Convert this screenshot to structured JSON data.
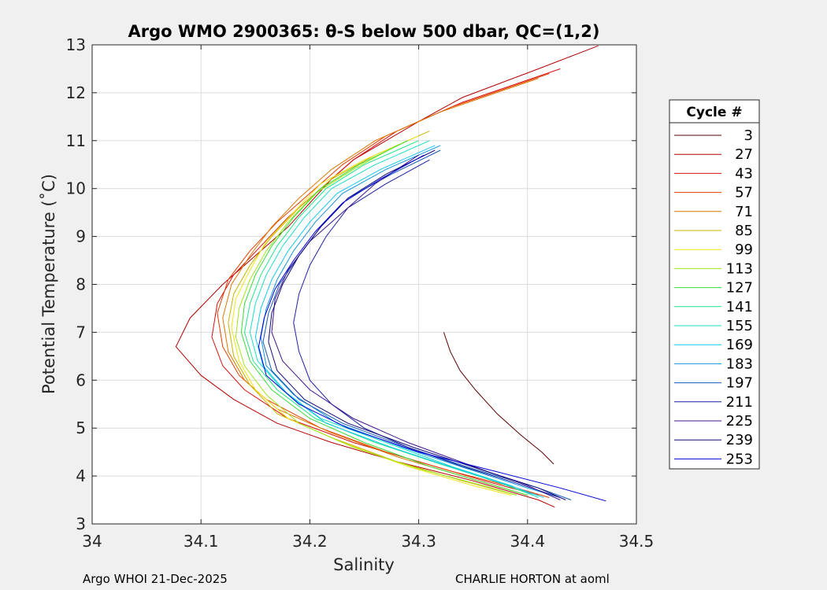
{
  "chart_data": {
    "type": "line",
    "title": "Argo WMO 2900365: θ-S below 500 dbar,  QC=(1,2)",
    "xlabel": "Salinity",
    "ylabel": "Potential Temperature (˚C)",
    "xlim": [
      34,
      34.5
    ],
    "ylim": [
      3,
      13
    ],
    "xticks": [
      "34",
      "34.1",
      "34.2",
      "34.3",
      "34.4",
      "34.5"
    ],
    "yticks": [
      "3",
      "4",
      "5",
      "6",
      "7",
      "8",
      "9",
      "10",
      "11",
      "12",
      "13"
    ],
    "grid": true,
    "legend_title": "Cycle #",
    "legend_position": "right",
    "series": [
      {
        "name": "3",
        "color": "#5a0000",
        "s": [
          34.323,
          34.329,
          34.338,
          34.352,
          34.372,
          34.394,
          34.413,
          34.424
        ],
        "theta": [
          7.0,
          6.6,
          6.2,
          5.8,
          5.3,
          4.85,
          4.5,
          4.25
        ]
      },
      {
        "name": "27",
        "color": "#b40000",
        "s": [
          34.465,
          34.41,
          34.34,
          34.3,
          34.27,
          34.24,
          34.22,
          34.2,
          34.18,
          34.16,
          34.14,
          34.12,
          34.09,
          34.077,
          34.1,
          34.13,
          34.17,
          34.22,
          34.28,
          34.35,
          34.41,
          34.425
        ],
        "theta": [
          12.98,
          12.5,
          11.9,
          11.4,
          11.0,
          10.6,
          10.2,
          9.7,
          9.2,
          8.8,
          8.4,
          8.0,
          7.3,
          6.7,
          6.1,
          5.6,
          5.1,
          4.7,
          4.3,
          3.9,
          3.5,
          3.35
        ]
      },
      {
        "name": "43",
        "color": "#d70f0f",
        "s": [
          34.43,
          34.34,
          34.28,
          34.24,
          34.21,
          34.18,
          34.155,
          34.13,
          34.115,
          34.11,
          34.12,
          34.14,
          34.18,
          34.24,
          34.3,
          34.36,
          34.41
        ],
        "theta": [
          12.5,
          11.8,
          11.2,
          10.6,
          10.0,
          9.4,
          8.8,
          8.2,
          7.6,
          6.9,
          6.3,
          5.8,
          5.2,
          4.7,
          4.3,
          3.9,
          3.6
        ]
      },
      {
        "name": "57",
        "color": "#e63c00",
        "s": [
          34.42,
          34.33,
          34.27,
          34.23,
          34.2,
          34.17,
          34.145,
          34.125,
          34.115,
          34.12,
          34.135,
          34.16,
          34.21,
          34.27,
          34.33,
          34.39,
          34.42
        ],
        "theta": [
          12.4,
          11.7,
          11.1,
          10.5,
          9.9,
          9.3,
          8.7,
          8.1,
          7.4,
          6.7,
          6.1,
          5.6,
          5.0,
          4.5,
          4.1,
          3.75,
          3.55
        ]
      },
      {
        "name": "71",
        "color": "#dc7800",
        "s": [
          34.41,
          34.32,
          34.26,
          34.22,
          34.19,
          34.165,
          34.145,
          34.128,
          34.12,
          34.125,
          34.14,
          34.17,
          34.22,
          34.28,
          34.34,
          34.4
        ],
        "theta": [
          12.3,
          11.6,
          11.0,
          10.4,
          9.8,
          9.2,
          8.6,
          8.0,
          7.3,
          6.6,
          6.0,
          5.4,
          4.9,
          4.4,
          4.0,
          3.6
        ]
      },
      {
        "name": "85",
        "color": "#c8b400",
        "s": [
          34.31,
          34.26,
          34.22,
          34.19,
          34.165,
          34.145,
          34.13,
          34.125,
          34.13,
          34.145,
          34.17,
          34.22,
          34.28,
          34.34,
          34.39
        ],
        "theta": [
          11.2,
          10.7,
          10.2,
          9.6,
          9.0,
          8.4,
          7.8,
          7.2,
          6.5,
          5.9,
          5.3,
          4.8,
          4.3,
          3.9,
          3.6
        ]
      },
      {
        "name": "99",
        "color": "#f0e614",
        "s": [
          34.3,
          34.25,
          34.21,
          34.185,
          34.16,
          34.145,
          34.132,
          34.128,
          34.135,
          34.15,
          34.18,
          34.23,
          34.29,
          34.35,
          34.385
        ],
        "theta": [
          11.1,
          10.6,
          10.1,
          9.5,
          8.9,
          8.3,
          7.7,
          7.1,
          6.4,
          5.8,
          5.2,
          4.7,
          4.2,
          3.8,
          3.6
        ]
      },
      {
        "name": "113",
        "color": "#a0e61e",
        "s": [
          34.28,
          34.24,
          34.205,
          34.18,
          34.16,
          34.145,
          34.135,
          34.132,
          34.14,
          34.16,
          34.19,
          34.24,
          34.3,
          34.36,
          34.39
        ],
        "theta": [
          10.9,
          10.4,
          9.9,
          9.3,
          8.7,
          8.1,
          7.5,
          6.9,
          6.3,
          5.7,
          5.1,
          4.6,
          4.15,
          3.8,
          3.6
        ]
      },
      {
        "name": "127",
        "color": "#3cdc3c",
        "s": [
          34.29,
          34.245,
          34.21,
          34.185,
          34.165,
          34.15,
          34.14,
          34.137,
          34.145,
          34.165,
          34.2,
          34.25,
          34.31,
          34.37,
          34.4
        ],
        "theta": [
          11.0,
          10.5,
          10.0,
          9.4,
          8.8,
          8.2,
          7.6,
          7.0,
          6.4,
          5.8,
          5.2,
          4.7,
          4.2,
          3.8,
          3.6
        ]
      },
      {
        "name": "141",
        "color": "#1ee68c",
        "s": [
          34.3,
          34.25,
          34.215,
          34.19,
          34.17,
          34.155,
          34.145,
          34.14,
          34.148,
          34.17,
          34.205,
          34.26,
          34.32,
          34.375,
          34.405
        ],
        "theta": [
          11.0,
          10.5,
          10.0,
          9.4,
          8.8,
          8.2,
          7.6,
          7.0,
          6.4,
          5.8,
          5.2,
          4.7,
          4.25,
          3.85,
          3.6
        ]
      },
      {
        "name": "155",
        "color": "#1edcc8",
        "s": [
          34.31,
          34.26,
          34.22,
          34.195,
          34.175,
          34.16,
          34.15,
          34.145,
          34.152,
          34.175,
          34.21,
          34.27,
          34.33,
          34.385,
          34.41
        ],
        "theta": [
          11.0,
          10.5,
          10.0,
          9.4,
          8.8,
          8.2,
          7.6,
          7.0,
          6.4,
          5.8,
          5.2,
          4.7,
          4.2,
          3.8,
          3.55
        ]
      },
      {
        "name": "169",
        "color": "#14c8f0",
        "s": [
          34.315,
          34.265,
          34.225,
          34.2,
          34.18,
          34.165,
          34.155,
          34.15,
          34.157,
          34.18,
          34.215,
          34.275,
          34.335,
          34.39,
          34.415
        ],
        "theta": [
          10.9,
          10.4,
          9.9,
          9.3,
          8.7,
          8.1,
          7.5,
          6.9,
          6.3,
          5.7,
          5.1,
          4.6,
          4.15,
          3.75,
          3.55
        ]
      },
      {
        "name": "183",
        "color": "#1496dc",
        "s": [
          34.32,
          34.27,
          34.23,
          34.205,
          34.185,
          34.17,
          34.16,
          34.155,
          34.16,
          34.185,
          34.225,
          34.285,
          34.345,
          34.4,
          34.43
        ],
        "theta": [
          10.9,
          10.4,
          9.9,
          9.3,
          8.7,
          8.1,
          7.5,
          6.9,
          6.3,
          5.7,
          5.1,
          4.6,
          4.15,
          3.75,
          3.55
        ]
      },
      {
        "name": "197",
        "color": "#145ab4",
        "s": [
          34.32,
          34.275,
          34.235,
          34.21,
          34.19,
          34.172,
          34.162,
          34.157,
          34.165,
          34.19,
          34.23,
          34.29,
          34.35,
          34.41,
          34.44
        ],
        "theta": [
          10.8,
          10.3,
          9.8,
          9.2,
          8.6,
          8.0,
          7.4,
          6.8,
          6.2,
          5.6,
          5.1,
          4.6,
          4.15,
          3.75,
          3.5
        ]
      },
      {
        "name": "211",
        "color": "#1e1ea0",
        "s": [
          34.31,
          34.27,
          34.235,
          34.215,
          34.2,
          34.19,
          34.185,
          34.19,
          34.2,
          34.22,
          34.25,
          34.29,
          34.34,
          34.39,
          34.43
        ],
        "theta": [
          10.6,
          10.1,
          9.6,
          9.0,
          8.4,
          7.8,
          7.2,
          6.6,
          6.0,
          5.5,
          5.0,
          4.6,
          4.2,
          3.85,
          3.55
        ]
      },
      {
        "name": "225",
        "color": "#3c148c",
        "s": [
          34.3,
          34.26,
          34.23,
          34.2,
          34.18,
          34.168,
          34.165,
          34.175,
          34.2,
          34.24,
          34.29,
          34.35,
          34.4,
          34.43
        ],
        "theta": [
          10.7,
          10.1,
          9.5,
          8.9,
          8.3,
          7.7,
          7.0,
          6.4,
          5.8,
          5.2,
          4.7,
          4.2,
          3.8,
          3.5
        ]
      },
      {
        "name": "239",
        "color": "#140a78",
        "s": [
          34.315,
          34.27,
          34.235,
          34.21,
          34.19,
          34.175,
          34.165,
          34.162,
          34.17,
          34.195,
          34.235,
          34.295,
          34.355,
          34.41,
          34.435
        ],
        "theta": [
          10.8,
          10.3,
          9.8,
          9.2,
          8.6,
          8.0,
          7.4,
          6.8,
          6.2,
          5.6,
          5.1,
          4.6,
          4.15,
          3.75,
          3.5
        ]
      },
      {
        "name": "253",
        "color": "#0000dc",
        "s": [
          34.305,
          34.265,
          34.23,
          34.205,
          34.185,
          34.168,
          34.158,
          34.153,
          34.16,
          34.19,
          34.235,
          34.3,
          34.37,
          34.43,
          34.472
        ],
        "theta": [
          10.7,
          10.2,
          9.7,
          9.1,
          8.5,
          7.9,
          7.3,
          6.7,
          6.1,
          5.5,
          5.0,
          4.5,
          4.1,
          3.75,
          3.48
        ]
      }
    ]
  },
  "footer": {
    "left": "Argo WHOI 21-Dec-2025",
    "right": "CHARLIE HORTON at aoml"
  }
}
